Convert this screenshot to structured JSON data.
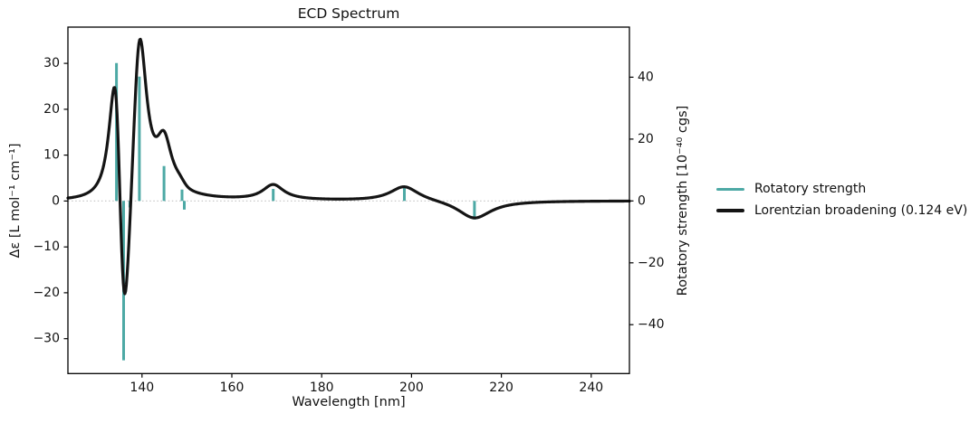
{
  "chart_data": {
    "type": "line",
    "title": "ECD Spectrum",
    "xlabel": "Wavelength [nm]",
    "ylabel_left": "Δε [L mol⁻¹ cm⁻¹]",
    "ylabel_right": "Rotatory strength [10⁻⁴⁰ cgs]",
    "xlim": [
      123.5,
      248.5
    ],
    "ylim_left": [
      -37.6,
      37.9
    ],
    "ylim_right": [
      -55.8,
      56.2
    ],
    "xticks": [
      140,
      160,
      180,
      200,
      220,
      240
    ],
    "yticks_left": [
      -30,
      -20,
      -10,
      0,
      10,
      20,
      30
    ],
    "yticks_right": [
      -40,
      -20,
      0,
      20,
      40
    ],
    "grid": false,
    "zero_line": {
      "show": true,
      "style": "dotted",
      "color": "#c9c9c9"
    },
    "legend_position": "center-right outside axes",
    "series": [
      {
        "name": "Rotatory strength",
        "type": "stick",
        "axis": "right",
        "color": "#4da9a5",
        "x_unit": "nm",
        "y_unit": "10⁻⁴⁰ cgs",
        "x": [
          134.3,
          135.9,
          137.3,
          139.4,
          144.9,
          148.9,
          149.4,
          169.2,
          198.4,
          214.0
        ],
        "y": [
          44.6,
          -51.5,
          -2.1,
          40.2,
          11.3,
          3.7,
          -2.8,
          3.9,
          4.5,
          -6.0
        ]
      },
      {
        "name": "Lorentzian broadening (0.124 eV)",
        "type": "line",
        "axis": "left",
        "color": "#141414",
        "model": {
          "kind": "lorentzian_sum_from_sticks",
          "gamma_hwhm_eV": 0.124,
          "ev_per_nm": 1239.842,
          "amplitude_scale": 0.115
        },
        "key_points": [
          [
            133.6,
            24.0
          ],
          [
            135.9,
            -18.9
          ],
          [
            139.4,
            34.9
          ],
          [
            144.6,
            14.3
          ],
          [
            169.2,
            3.7
          ],
          [
            198.4,
            3.0
          ],
          [
            214.0,
            -3.9
          ],
          [
            248.0,
            -0.1
          ]
        ]
      }
    ]
  }
}
